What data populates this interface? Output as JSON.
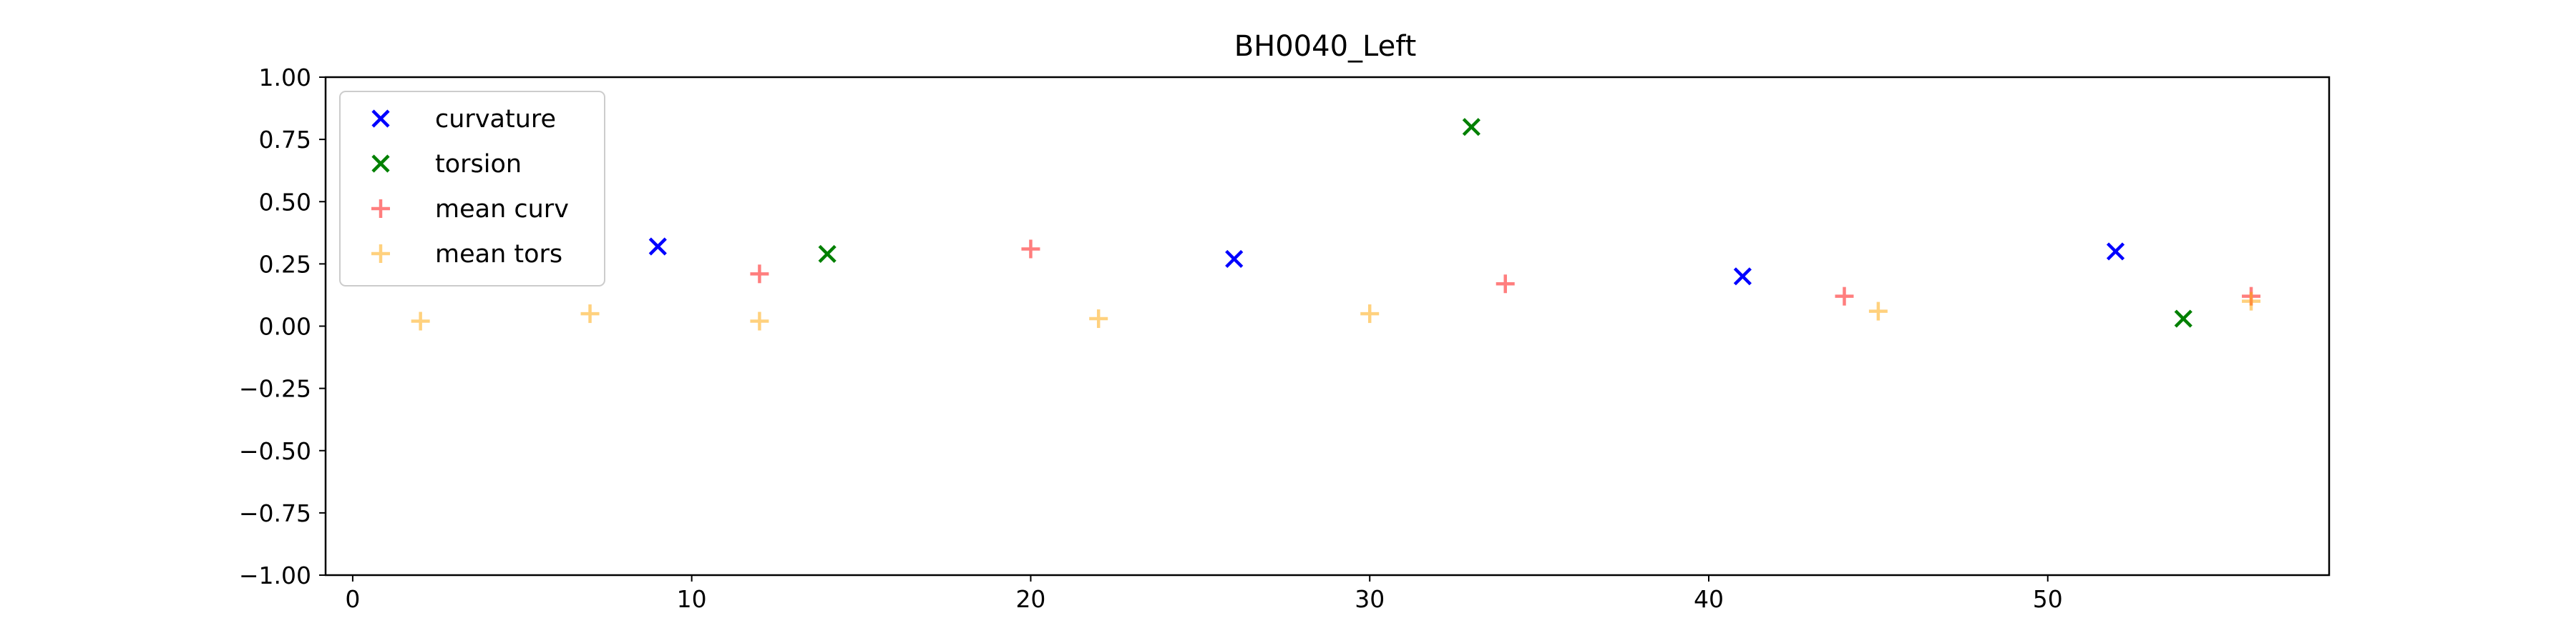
{
  "chart_data": {
    "type": "scatter",
    "title": "BH0040_Left",
    "xlabel": "",
    "ylabel": "",
    "xlim": [
      -0.8,
      58.3
    ],
    "ylim": [
      -1.0,
      1.0
    ],
    "xticks": [
      0,
      10,
      20,
      30,
      40,
      50
    ],
    "yticks": [
      -1.0,
      -0.75,
      -0.5,
      -0.25,
      0.0,
      0.25,
      0.5,
      0.75,
      1.0
    ],
    "ytick_labels": [
      "−1.00",
      "−0.75",
      "−0.50",
      "−0.25",
      "0.00",
      "0.25",
      "0.50",
      "0.75",
      "1.00"
    ],
    "grid": false,
    "legend_position": "upper-left",
    "series": [
      {
        "name": "curvature",
        "marker": "x",
        "color": "#0000ff",
        "alpha": 1.0,
        "points": [
          [
            9,
            0.32
          ],
          [
            26,
            0.27
          ],
          [
            41,
            0.2
          ],
          [
            52,
            0.3
          ]
        ]
      },
      {
        "name": "torsion",
        "marker": "x",
        "color": "#008000",
        "alpha": 1.0,
        "points": [
          [
            14,
            0.29
          ],
          [
            33,
            0.8
          ],
          [
            54,
            0.03
          ]
        ]
      },
      {
        "name": "mean curv",
        "marker": "+",
        "color": "#ff0000",
        "alpha": 0.5,
        "points": [
          [
            12,
            0.21
          ],
          [
            20,
            0.31
          ],
          [
            34,
            0.17
          ],
          [
            44,
            0.12
          ],
          [
            56,
            0.12
          ]
        ]
      },
      {
        "name": "mean tors",
        "marker": "+",
        "color": "#ffa500",
        "alpha": 0.5,
        "points": [
          [
            2,
            0.02
          ],
          [
            7,
            0.05
          ],
          [
            12,
            0.02
          ],
          [
            22,
            0.03
          ],
          [
            30,
            0.05
          ],
          [
            45,
            0.06
          ],
          [
            56,
            0.1
          ]
        ]
      }
    ]
  }
}
